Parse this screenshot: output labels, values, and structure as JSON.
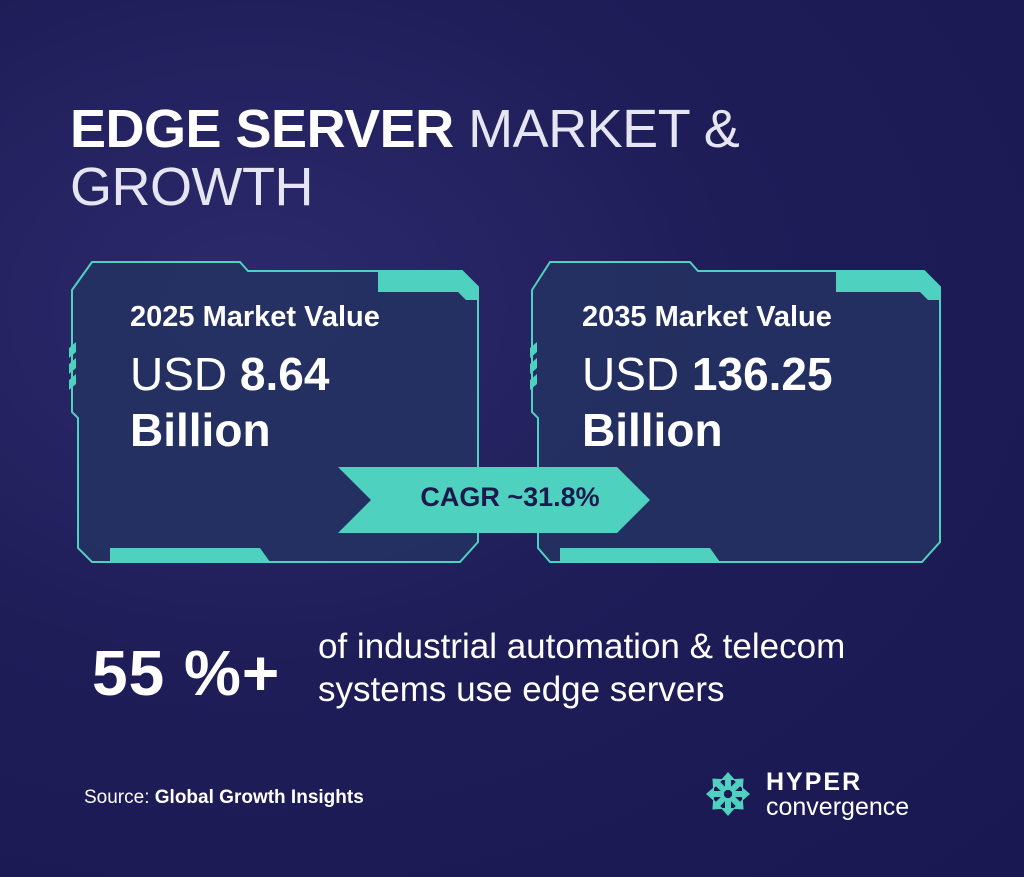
{
  "header": {
    "title_bold": "EDGE SERVER",
    "title_light": "MARKET & GROWTH"
  },
  "cards": [
    {
      "label": "2025 Market Value",
      "currency": "USD",
      "value": "8.64",
      "unit": "Billion"
    },
    {
      "label": "2035 Market Value",
      "currency": "USD",
      "value": "136.25",
      "unit": "Billion"
    }
  ],
  "cagr": {
    "label": "CAGR ~31.8%"
  },
  "stat": {
    "value": "55 %+",
    "description": "of industrial automation & telecom systems use edge servers"
  },
  "footer": {
    "source_prefix": "Source:",
    "source_name": "Global Growth Insights"
  },
  "logo": {
    "line1": "HYPER",
    "line2": "convergence",
    "icon": "snowflake-arrows-icon"
  },
  "colors": {
    "background": "#1f1d58",
    "card_fill": "#253261",
    "accent": "#4fd1bf",
    "text": "#ffffff"
  }
}
